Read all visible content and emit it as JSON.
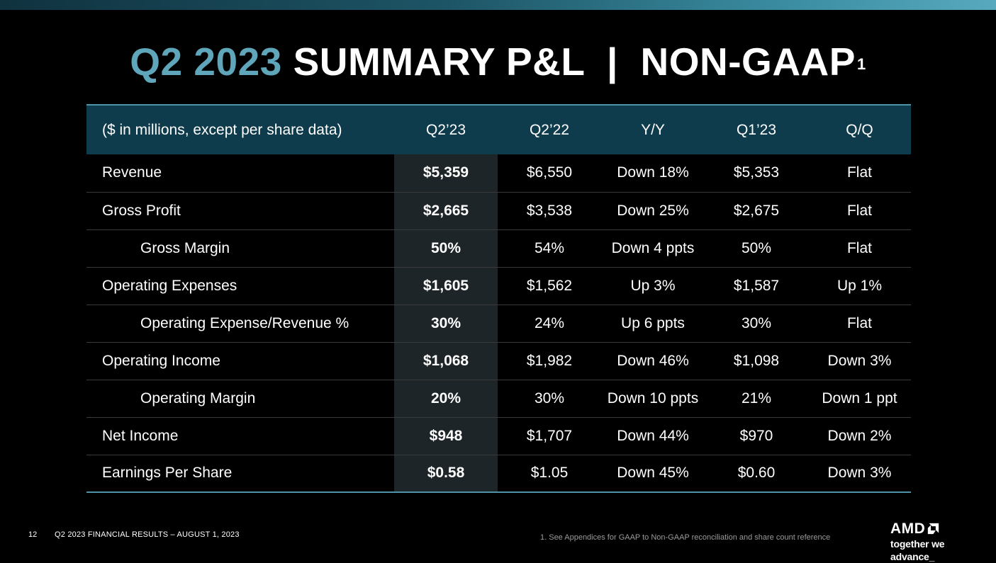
{
  "title": {
    "accent": "Q2 2023",
    "main": "SUMMARY P&L  |  NON-GAAP",
    "superscript": "1"
  },
  "table": {
    "columns": [
      "($ in millions, except per share data)",
      "Q2’23",
      "Q2’22",
      "Y/Y",
      "Q1’23",
      "Q/Q"
    ],
    "rows": [
      {
        "label": "Revenue",
        "indent": false,
        "values": [
          "$5,359",
          "$6,550",
          "Down 18%",
          "$5,353",
          "Flat"
        ]
      },
      {
        "label": "Gross Profit",
        "indent": false,
        "values": [
          "$2,665",
          "$3,538",
          "Down 25%",
          "$2,675",
          "Flat"
        ]
      },
      {
        "label": "Gross Margin",
        "indent": true,
        "values": [
          "50%",
          "54%",
          "Down 4 ppts",
          "50%",
          "Flat"
        ]
      },
      {
        "label": "Operating Expenses",
        "indent": false,
        "values": [
          "$1,605",
          "$1,562",
          "Up 3%",
          "$1,587",
          "Up 1%"
        ]
      },
      {
        "label": "Operating Expense/Revenue %",
        "indent": true,
        "values": [
          "30%",
          "24%",
          "Up 6 ppts",
          "30%",
          "Flat"
        ]
      },
      {
        "label": "Operating Income",
        "indent": false,
        "values": [
          "$1,068",
          "$1,982",
          "Down 46%",
          "$1,098",
          "Down 3%"
        ]
      },
      {
        "label": "Operating Margin",
        "indent": true,
        "values": [
          "20%",
          "30%",
          "Down 10 ppts",
          "21%",
          "Down 1 ppt"
        ]
      },
      {
        "label": "Net Income",
        "indent": false,
        "values": [
          "$948",
          "$1,707",
          "Down 44%",
          "$970",
          "Down 2%"
        ]
      },
      {
        "label": "Earnings Per Share",
        "indent": false,
        "values": [
          "$0.58",
          "$1.05",
          "Down 45%",
          "$0.60",
          "Down 3%"
        ]
      }
    ]
  },
  "footer": {
    "page_number": "12",
    "text": "Q2 2023 FINANCIAL RESULTS – AUGUST 1, 2023",
    "footnote": "1.  See Appendices for GAAP to Non-GAAP reconciliation and share count reference"
  },
  "logo": {
    "wordmark": "AMD",
    "icon": "amd-arrow-icon",
    "tagline": "together we advance_"
  },
  "colors": {
    "accent": "#5fa6ba",
    "header_bg": "#0f3c4c",
    "highlight_col": "#1e2528",
    "rule": "#4f93a8"
  }
}
